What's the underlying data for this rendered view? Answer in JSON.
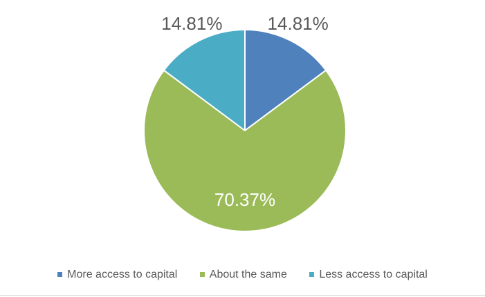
{
  "chart_data": {
    "type": "pie",
    "title": "",
    "categories": [
      "More access to capital",
      "About the same",
      "Less access to capital"
    ],
    "values": [
      14.81,
      70.37,
      14.81
    ],
    "data_labels": [
      "14.81%",
      "70.37%",
      "14.81%"
    ],
    "colors": [
      "#4f81bd",
      "#9bbb59",
      "#4bacc6"
    ],
    "start_angle_deg": 0,
    "direction": "clockwise",
    "legend_position": "bottom",
    "label_colors": [
      "#595959",
      "#ffffff",
      "#595959"
    ]
  }
}
